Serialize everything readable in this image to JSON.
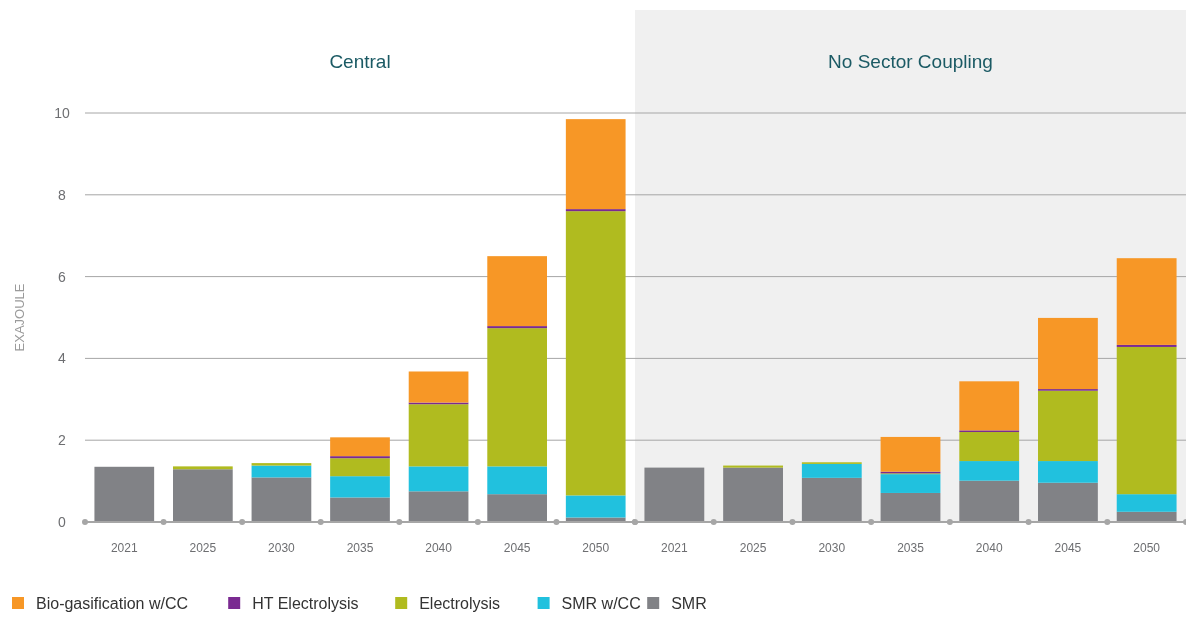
{
  "chart_data": [
    {
      "type": "bar",
      "title": "Central",
      "ylabel": "EXAJOULE",
      "categories": [
        "2021",
        "2025",
        "2030",
        "2035",
        "2040",
        "2045",
        "2050"
      ],
      "stacked": true,
      "ylim": [
        0,
        10
      ],
      "yticks": [
        0,
        2,
        4,
        6,
        8,
        10
      ],
      "grid": "y",
      "legend": "bottom",
      "series": [
        {
          "name": "SMR",
          "color": "#818286",
          "values": [
            1.35,
            1.29,
            1.09,
            0.6,
            0.75,
            0.68,
            0.11
          ]
        },
        {
          "name": "SMR w/CC",
          "color": "#21c1de",
          "values": [
            0,
            0,
            0.29,
            0.52,
            0.61,
            0.68,
            0.54
          ]
        },
        {
          "name": "Electrolysis",
          "color": "#b0bb1f",
          "values": [
            0,
            0.07,
            0.06,
            0.44,
            1.52,
            3.38,
            6.95
          ]
        },
        {
          "name": "HT Electrolysis",
          "color": "#7a2a91",
          "values": [
            0,
            0,
            0,
            0.05,
            0.04,
            0.05,
            0.05
          ]
        },
        {
          "name": "Bio-gasification w/CC",
          "color": "#f79726",
          "values": [
            0,
            0,
            0,
            0.46,
            0.76,
            1.71,
            2.2
          ]
        }
      ]
    },
    {
      "type": "bar",
      "title": "No Sector Coupling",
      "categories": [
        "2021",
        "2025",
        "2030",
        "2035",
        "2040",
        "2045",
        "2050"
      ],
      "stacked": true,
      "ylim": [
        0,
        10
      ],
      "yticks": [
        0,
        2,
        4,
        6,
        8,
        10
      ],
      "grid": "y",
      "tick_labels": "x",
      "series": [
        {
          "color": "#818286",
          "values": [
            1.33,
            1.33,
            1.08,
            0.71,
            1.01,
            0.96,
            0.25
          ]
        },
        {
          "color": "#21c1de",
          "values": [
            0,
            0,
            0.34,
            0.46,
            0.48,
            0.53,
            0.43
          ]
        },
        {
          "color": "#b0bb1f",
          "values": [
            0,
            0.05,
            0.04,
            0.02,
            0.71,
            1.72,
            3.6
          ]
        },
        {
          "color": "#7a2a91",
          "values": [
            0,
            0,
            0,
            0.04,
            0.04,
            0.04,
            0.05
          ]
        },
        {
          "color": "#f79726",
          "values": [
            0,
            0,
            0,
            0.85,
            1.2,
            1.74,
            2.12
          ]
        }
      ]
    }
  ]
}
